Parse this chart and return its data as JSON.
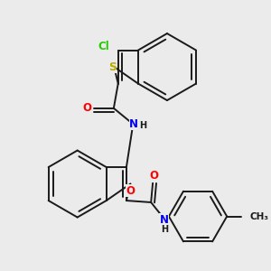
{
  "background_color": "#ebebeb",
  "bond_color": "#1a1a1a",
  "bond_width": 1.4,
  "figsize": [
    3.0,
    3.0
  ],
  "dpi": 100,
  "atom_colors": {
    "O": "#ff0000",
    "N": "#0000ee",
    "S": "#bbaa00",
    "Cl": "#22cc00",
    "C": "#1a1a1a",
    "H": "#1a1a1a"
  },
  "font_size": 8.5,
  "font_size_small": 7.0
}
